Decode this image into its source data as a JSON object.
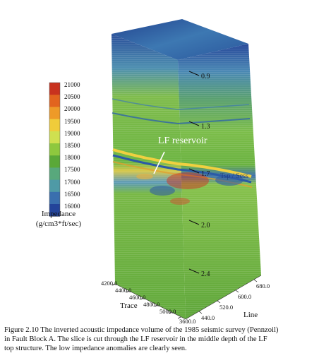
{
  "colorbar": {
    "ticks": [
      "21000",
      "20500",
      "20000",
      "19500",
      "19000",
      "18500",
      "18000",
      "17500",
      "17000",
      "16500",
      "16000"
    ],
    "title_line1": "Impedance",
    "title_line2": "(g/cm3*ft/sec)",
    "colors": [
      "#c8321e",
      "#e2641e",
      "#ee9a28",
      "#f0cc3a",
      "#cfe050",
      "#8ec83e",
      "#5aa838",
      "#58a87c",
      "#4f9aa6",
      "#3a6fae",
      "#23449a"
    ]
  },
  "volume": {
    "depth_labels": [
      "0.9",
      "1.3",
      "1.7",
      "2.0",
      "2.4"
    ],
    "reservoir_label": "LF reservoir",
    "anomaly_label": "Tsp / Sess",
    "trace_ticks": [
      "4200.0",
      "4400.0",
      "4600.0",
      "4800.0",
      "5000.0",
      "3600.0"
    ],
    "line_ticks": [
      "440.0",
      "520.0",
      "600.0",
      "680.0"
    ],
    "trace_axis_label": "Trace",
    "line_axis_label": "Line"
  },
  "caption": {
    "line1": "Figure 2.10 The inverted acoustic impedance volume of the 1985 seismic survey (Pennzoil)",
    "line2": "in Fault Block A.  The slice is cut through the LF reservoir in the middle depth of the LF",
    "line3": "top structure.  The low impedance anomalies are clearly seen."
  }
}
